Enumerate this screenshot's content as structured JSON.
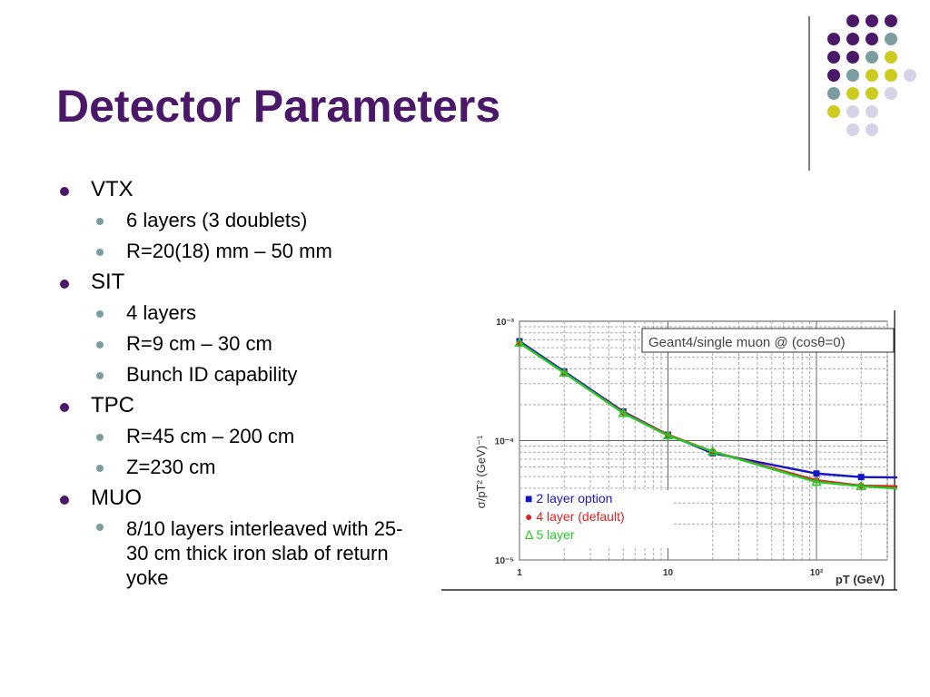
{
  "slide": {
    "title": "Detector Parameters",
    "colors": {
      "title": "#4b1869",
      "bullet": "#4b1869",
      "subbullet": "#7a9e9f"
    },
    "decoration": "dot-grid"
  },
  "bullets": [
    {
      "label": "VTX",
      "sub": [
        "6 layers (3 doublets)",
        "R=20(18) mm – 50 mm"
      ]
    },
    {
      "label": "SIT",
      "sub": [
        "4 layers",
        "R=9 cm – 30 cm",
        "Bunch ID capability"
      ]
    },
    {
      "label": "TPC",
      "sub": [
        "R=45 cm – 200 cm",
        "Z=230 cm"
      ]
    },
    {
      "label": "MUO",
      "sub": [
        "8/10 layers interleaved with 25-30 cm thick iron slab of return yoke"
      ]
    }
  ],
  "chart_data": {
    "type": "line",
    "annotation": "Geant4/single muon @ (cosθ=0)",
    "xlabel": "pT (GeV)",
    "ylabel": "σ/pT² (GeV)⁻¹",
    "xscale": "log",
    "yscale": "log",
    "xlim": [
      1,
      300
    ],
    "ylim": [
      1e-05,
      0.001
    ],
    "x_ticks": [
      "1",
      "10",
      "10²"
    ],
    "y_ticks": [
      "10⁻³",
      "10⁻⁴",
      "10⁻⁵"
    ],
    "grid": true,
    "legend_position": "bottom-left",
    "x": [
      1,
      2,
      5,
      10,
      20,
      100,
      200,
      500
    ],
    "series": [
      {
        "name": "■ 2 layer option",
        "color": "#1515c8",
        "marker": "square",
        "values": [
          0.00068,
          0.00038,
          0.000175,
          0.000112,
          7.85e-05,
          5.3e-05,
          4.95e-05,
          4.9e-05
        ]
      },
      {
        "name": "● 4 layer (default)",
        "color": "#e02020",
        "marker": "circle",
        "values": [
          0.00066,
          0.00037,
          0.000172,
          0.000112,
          8.1e-05,
          4.65e-05,
          4.2e-05,
          4.1e-05
        ]
      },
      {
        "name": "Δ 5 layer",
        "color": "#22cc22",
        "marker": "triangle",
        "values": [
          0.00066,
          0.00037,
          0.00017,
          0.00011,
          8.1e-05,
          4.5e-05,
          4.15e-05,
          3.85e-05
        ]
      }
    ]
  }
}
